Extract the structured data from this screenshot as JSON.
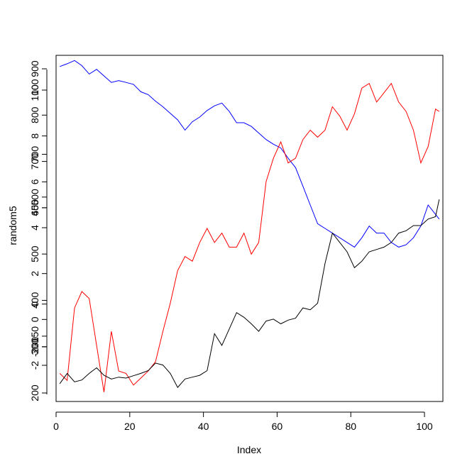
{
  "chart_data": {
    "type": "line",
    "xlabel": "Index",
    "ylabel": "random5",
    "xlim": [
      0,
      105
    ],
    "x_ticks": [
      0,
      20,
      40,
      60,
      80,
      100
    ],
    "y_axis_overlaid_scales": [
      {
        "ticks": [
          200,
          300,
          400,
          500,
          600,
          700,
          800,
          900
        ],
        "labels": [
          "200",
          "300",
          "400",
          "500",
          "600",
          "700",
          "800",
          "900"
        ]
      },
      {
        "ticks": [
          -2,
          0,
          2,
          4,
          6,
          8,
          10
        ],
        "labels": [
          "-2",
          "0",
          "2",
          "4",
          "6",
          "8",
          "10"
        ]
      },
      {
        "ticks": [
          -200,
          -150,
          0,
          450,
          500,
          700,
          1000
        ],
        "labels": [
          "-200",
          "-150",
          "0",
          "450",
          "500",
          "700",
          "1000"
        ]
      }
    ],
    "y_scale_primary": {
      "ylim": [
        180,
        920
      ]
    },
    "series": [
      {
        "color": "#0000ff",
        "x": [
          1,
          3,
          5,
          7,
          9,
          11,
          13,
          15,
          17,
          19,
          21,
          23,
          25,
          27,
          29,
          31,
          33,
          35,
          37,
          39,
          41,
          43,
          45,
          47,
          49,
          51,
          53,
          55,
          57,
          59,
          61,
          63,
          65,
          67,
          69,
          71,
          73,
          75,
          77,
          79,
          81,
          83,
          85,
          87,
          89,
          91,
          93,
          95,
          97,
          99,
          101,
          103,
          104
        ],
        "y": [
          896,
          902,
          909,
          898,
          880,
          890,
          876,
          862,
          866,
          862,
          858,
          842,
          836,
          822,
          810,
          796,
          782,
          760,
          778,
          788,
          802,
          812,
          818,
          800,
          776,
          776,
          768,
          754,
          740,
          730,
          722,
          700,
          680,
          640,
          600,
          560,
          550,
          540,
          530,
          520,
          510,
          530,
          555,
          540,
          540,
          520,
          510,
          515,
          530,
          555,
          600,
          580,
          570
        ]
      },
      {
        "color": "#ff0000",
        "x": [
          1,
          3,
          5,
          7,
          9,
          11,
          13,
          15,
          17,
          19,
          21,
          23,
          25,
          27,
          29,
          31,
          33,
          35,
          37,
          39,
          41,
          43,
          45,
          47,
          49,
          51,
          53,
          55,
          57,
          59,
          61,
          63,
          65,
          67,
          69,
          71,
          73,
          75,
          77,
          79,
          81,
          83,
          85,
          87,
          89,
          91,
          93,
          95,
          97,
          99,
          101,
          103,
          104
        ],
        "y": [
          240,
          225,
          380,
          415,
          400,
          300,
          200,
          330,
          245,
          240,
          215,
          230,
          245,
          265,
          330,
          390,
          460,
          490,
          480,
          520,
          550,
          520,
          540,
          510,
          510,
          540,
          495,
          520,
          650,
          700,
          735,
          690,
          700,
          740,
          760,
          745,
          760,
          810,
          790,
          760,
          795,
          850,
          860,
          820,
          840,
          860,
          820,
          800,
          760,
          690,
          725,
          805,
          800
        ]
      },
      {
        "color": "#000000",
        "x": [
          1,
          3,
          5,
          7,
          9,
          11,
          13,
          15,
          17,
          19,
          21,
          23,
          25,
          27,
          29,
          31,
          33,
          35,
          37,
          39,
          41,
          43,
          45,
          47,
          49,
          51,
          53,
          55,
          57,
          59,
          61,
          63,
          65,
          67,
          69,
          71,
          73,
          75,
          77,
          79,
          81,
          83,
          85,
          87,
          89,
          91,
          93,
          95,
          97,
          99,
          101,
          103,
          104
        ],
        "y": [
          218,
          240,
          222,
          226,
          240,
          252,
          236,
          228,
          232,
          230,
          235,
          240,
          246,
          262,
          258,
          240,
          210,
          228,
          232,
          236,
          246,
          325,
          300,
          335,
          370,
          360,
          346,
          330,
          352,
          356,
          346,
          354,
          358,
          380,
          376,
          390,
          475,
          540,
          520,
          500,
          466,
          480,
          500,
          505,
          510,
          520,
          540,
          545,
          556,
          556,
          570,
          575,
          612
        ]
      }
    ]
  }
}
